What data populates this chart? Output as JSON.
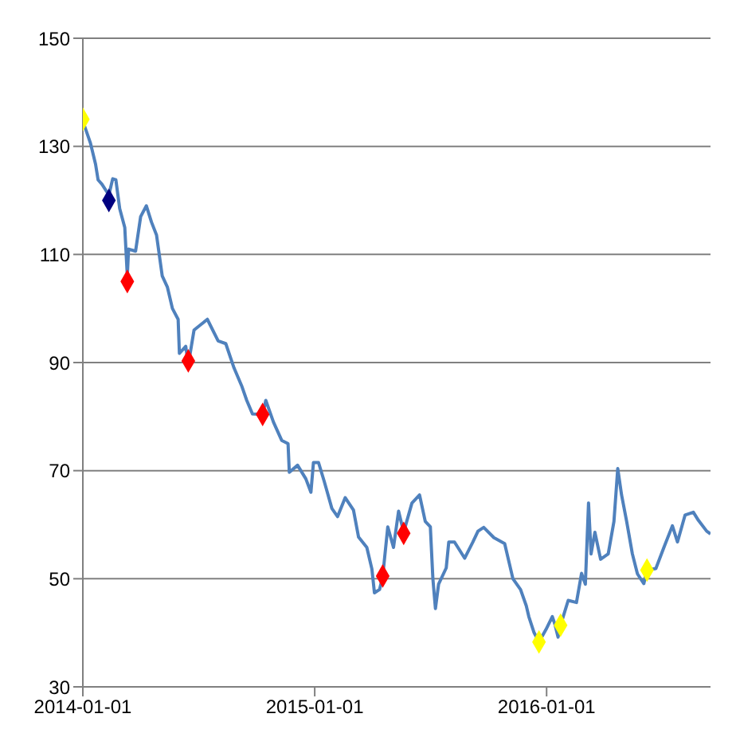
{
  "chart_data": {
    "type": "line",
    "x": [
      "2014-01-03",
      "2014-01-13",
      "2014-01-21",
      "2014-01-25",
      "2014-01-31",
      "2014-02-11",
      "2014-02-17",
      "2014-02-22",
      "2014-02-28",
      "2014-03-08",
      "2014-03-12",
      "2014-03-14",
      "2014-03-25",
      "2014-04-02",
      "2014-04-11",
      "2014-04-19",
      "2014-04-27",
      "2014-05-06",
      "2014-05-14",
      "2014-05-22",
      "2014-05-31",
      "2014-06-02",
      "2014-06-12",
      "2014-06-16",
      "2014-06-25",
      "2014-07-16",
      "2014-08-02",
      "2014-08-14",
      "2014-08-27",
      "2014-09-08",
      "2014-09-16",
      "2014-09-25",
      "2014-10-11",
      "2014-10-16",
      "2014-10-28",
      "2014-11-10",
      "2014-11-20",
      "2014-11-22",
      "2014-12-05",
      "2014-12-18",
      "2014-12-26",
      "2014-12-30",
      "2015-01-07",
      "2015-01-16",
      "2015-01-28",
      "2015-02-06",
      "2015-02-18",
      "2015-03-03",
      "2015-03-11",
      "2015-03-24",
      "2015-04-01",
      "2015-04-05",
      "2015-04-13",
      "2015-04-18",
      "2015-04-26",
      "2015-05-05",
      "2015-05-13",
      "2015-05-21",
      "2015-06-03",
      "2015-06-15",
      "2015-06-24",
      "2015-07-02",
      "2015-07-06",
      "2015-07-10",
      "2015-07-15",
      "2015-07-27",
      "2015-07-31",
      "2015-08-09",
      "2015-08-25",
      "2015-09-07",
      "2015-09-15",
      "2015-09-24",
      "2015-10-10",
      "2015-10-27",
      "2015-11-09",
      "2015-11-21",
      "2015-11-30",
      "2015-12-04",
      "2015-12-12",
      "2015-12-20",
      "2015-12-31",
      "2016-01-10",
      "2016-01-14",
      "2016-01-19",
      "2016-01-23",
      "2016-02-04",
      "2016-02-17",
      "2016-02-25",
      "2016-03-02",
      "2016-03-07",
      "2016-03-11",
      "2016-03-17",
      "2016-03-26",
      "2016-04-07",
      "2016-04-16",
      "2016-04-22",
      "2016-04-28",
      "2016-05-06",
      "2016-05-15",
      "2016-05-23",
      "2016-06-02",
      "2016-06-07",
      "2016-06-21",
      "2016-07-04",
      "2016-07-17",
      "2016-07-25",
      "2016-08-06",
      "2016-08-19",
      "2016-08-27",
      "2016-09-09",
      "2016-09-15"
    ],
    "series": [
      {
        "color": "#4f81bd",
        "marker": "none",
        "values": [
          134,
          130.6,
          126.7,
          123.8,
          123,
          121,
          124,
          123.8,
          118.5,
          115,
          106,
          111,
          110.6,
          117,
          119,
          116,
          113.6,
          106,
          104,
          100,
          98,
          91.7,
          93,
          89.6,
          96,
          98,
          94,
          93.5,
          89,
          85.7,
          83,
          80.5,
          80.4,
          83,
          79,
          75.6,
          75,
          69.7,
          71,
          68.5,
          66,
          71.5,
          71.5,
          68,
          63,
          61.5,
          65,
          62.7,
          57.7,
          55.8,
          51.8,
          47.4,
          48,
          50.4,
          59.6,
          55.8,
          62.5,
          58.6,
          64,
          65.5,
          60.6,
          59.6,
          50,
          44.5,
          49,
          52,
          56.8,
          56.8,
          53.8,
          56.8,
          58.8,
          59.5,
          57.6,
          56.5,
          50,
          48,
          45,
          43,
          40.1,
          38.3,
          40.6,
          43,
          41.6,
          39.2,
          41.4,
          46,
          45.6,
          51,
          49,
          64,
          54.6,
          58.6,
          53.6,
          54.6,
          60.6,
          70.4,
          65.5,
          60.6,
          54.6,
          50.9,
          49.1,
          51.6,
          51.9,
          55.9,
          59.8,
          56.8,
          61.8,
          62.3,
          60.8,
          58.8,
          58.3
        ]
      },
      {
        "type": "scatter",
        "color": "#ffff00",
        "marker": "diamond",
        "x": [
          "2014-01-01",
          "2015-12-20",
          "2016-01-23",
          "2016-06-07"
        ],
        "values": [
          135,
          38.3,
          41.4,
          51.6
        ]
      },
      {
        "type": "scatter",
        "color": "#000080",
        "marker": "diamond",
        "x": [
          "2014-02-11"
        ],
        "values": [
          120
        ]
      },
      {
        "type": "scatter",
        "color": "#ff0000",
        "marker": "diamond",
        "x": [
          "2014-03-12",
          "2014-06-16",
          "2014-10-11",
          "2015-04-18",
          "2015-05-21"
        ],
        "values": [
          105,
          90.3,
          80.4,
          50.5,
          58.4
        ]
      }
    ],
    "xlim": [
      "2014-01-01",
      "2016-09-15"
    ],
    "xticks": [
      "2014-01-01",
      "2015-01-01",
      "2016-01-01"
    ],
    "ylim": [
      30,
      150
    ],
    "yticks": [
      30,
      50,
      70,
      90,
      110,
      130,
      150
    ],
    "grid": "y"
  }
}
